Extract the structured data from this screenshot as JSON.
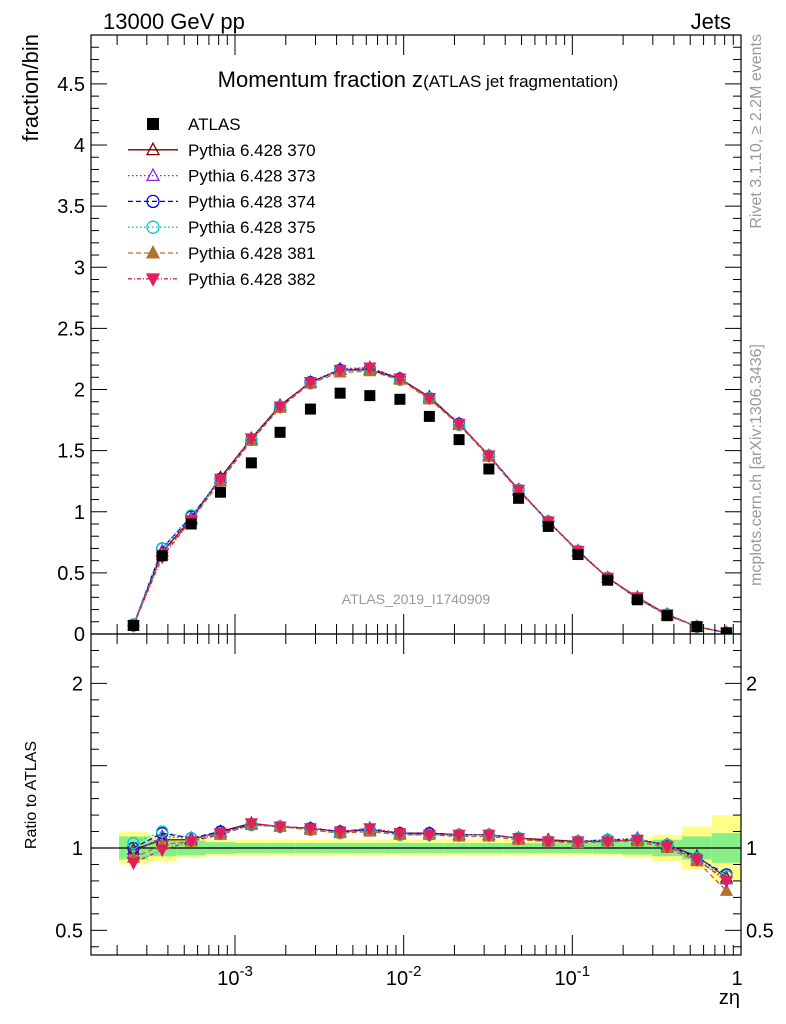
{
  "header": {
    "left": "13000 GeV pp",
    "right": "Jets"
  },
  "side_labels": {
    "rivet": "Rivet 3.1.10, ≥ 2.2M events",
    "mcplots": "mcplots.cern.ch [arXiv:1306.3436]"
  },
  "chart_data": {
    "type": "scatter",
    "title_main": "Momentum fraction z",
    "title_sub": "(ATLAS jet fragmentation)",
    "watermark": "ATLAS_2019_I1740909",
    "xlabel": "zη",
    "ylabel": "fraction/bin",
    "ratio_ylabel": "Ratio to ATLAS",
    "xscale": "log",
    "xlim": [
      0.00014,
      1.0
    ],
    "ylim": [
      0,
      4.9
    ],
    "ratio_ylim": [
      0.35,
      2.3
    ],
    "x_tick_labels": [
      "10^-3",
      "10^-2",
      "10^-1",
      "1"
    ],
    "y_ticks": [
      "0",
      "0.5",
      "1",
      "1.5",
      "2",
      "2.5",
      "3",
      "3.5",
      "4",
      "4.5"
    ],
    "ratio_y_ticks": [
      "0.5",
      "1",
      "2"
    ],
    "legend_position": "top-left",
    "x": [
      0.00025,
      0.00037,
      0.00055,
      0.00082,
      0.00125,
      0.00185,
      0.0028,
      0.0042,
      0.0063,
      0.0095,
      0.0142,
      0.0213,
      0.032,
      0.048,
      0.072,
      0.108,
      0.162,
      0.243,
      0.365,
      0.548,
      0.82
    ],
    "series": [
      {
        "name": "ATLAS",
        "color": "#000000",
        "marker": "square",
        "dash": "none",
        "values": [
          0.07,
          0.64,
          0.9,
          1.16,
          1.4,
          1.65,
          1.84,
          1.97,
          1.95,
          1.92,
          1.78,
          1.59,
          1.35,
          1.11,
          0.88,
          0.65,
          0.44,
          0.28,
          0.15,
          0.06,
          0.01
        ],
        "ratio_band_inner": [
          0.07,
          0.05,
          0.045,
          0.035,
          0.03,
          0.03,
          0.03,
          0.03,
          0.03,
          0.03,
          0.03,
          0.03,
          0.03,
          0.03,
          0.03,
          0.03,
          0.035,
          0.04,
          0.05,
          0.07,
          0.09
        ],
        "ratio_band_outer": [
          0.1,
          0.08,
          0.06,
          0.05,
          0.05,
          0.05,
          0.05,
          0.05,
          0.05,
          0.05,
          0.05,
          0.05,
          0.05,
          0.05,
          0.05,
          0.05,
          0.05,
          0.06,
          0.08,
          0.13,
          0.2
        ]
      },
      {
        "name": "Pythia 6.428 370",
        "color": "#800000",
        "marker": "triangle-open",
        "dash": "none",
        "values": [
          0.07,
          0.67,
          0.94,
          1.28,
          1.6,
          1.87,
          2.06,
          2.16,
          2.16,
          2.09,
          1.94,
          1.72,
          1.46,
          1.18,
          0.92,
          0.68,
          0.46,
          0.3,
          0.16,
          0.06,
          0.01
        ],
        "ratio": [
          0.99,
          1.05,
          1.05,
          1.1,
          1.15,
          1.13,
          1.12,
          1.1,
          1.11,
          1.09,
          1.09,
          1.08,
          1.08,
          1.06,
          1.05,
          1.04,
          1.04,
          1.05,
          1.02,
          0.95,
          0.82
        ]
      },
      {
        "name": "Pythia 6.428 373",
        "color": "#8a2be2",
        "marker": "triangle-open",
        "dash": "1.5,2.5",
        "values": [
          0.07,
          0.68,
          0.95,
          1.27,
          1.59,
          1.86,
          2.06,
          2.17,
          2.18,
          2.09,
          1.93,
          1.72,
          1.46,
          1.18,
          0.92,
          0.68,
          0.46,
          0.3,
          0.16,
          0.06,
          0.01
        ],
        "ratio": [
          0.97,
          1.07,
          1.06,
          1.09,
          1.14,
          1.13,
          1.12,
          1.1,
          1.12,
          1.09,
          1.09,
          1.08,
          1.08,
          1.06,
          1.04,
          1.04,
          1.05,
          1.06,
          1.01,
          0.93,
          0.81
        ]
      },
      {
        "name": "Pythia 6.428 374",
        "color": "#0000d0",
        "marker": "circle-open",
        "dash": "5,3",
        "values": [
          0.07,
          0.7,
          0.96,
          1.27,
          1.59,
          1.86,
          2.06,
          2.16,
          2.17,
          2.09,
          1.93,
          1.72,
          1.46,
          1.18,
          0.92,
          0.68,
          0.46,
          0.29,
          0.16,
          0.06,
          0.01
        ],
        "ratio": [
          1.0,
          1.09,
          1.06,
          1.1,
          1.14,
          1.13,
          1.12,
          1.1,
          1.11,
          1.09,
          1.09,
          1.08,
          1.08,
          1.06,
          1.04,
          1.04,
          1.05,
          1.05,
          1.02,
          0.94,
          0.84
        ]
      },
      {
        "name": "Pythia 6.428 375",
        "color": "#00c8c8",
        "marker": "circle-open",
        "dash": "1.5,2.5",
        "values": [
          0.08,
          0.7,
          0.97,
          1.26,
          1.59,
          1.86,
          2.05,
          2.15,
          2.16,
          2.08,
          1.93,
          1.71,
          1.46,
          1.18,
          0.92,
          0.68,
          0.46,
          0.29,
          0.16,
          0.06,
          0.01
        ],
        "ratio": [
          1.03,
          1.1,
          1.06,
          1.09,
          1.14,
          1.13,
          1.11,
          1.09,
          1.11,
          1.08,
          1.08,
          1.08,
          1.08,
          1.06,
          1.04,
          1.04,
          1.05,
          1.05,
          1.02,
          0.94,
          0.83
        ]
      },
      {
        "name": "Pythia 6.428 381",
        "color": "#b07030",
        "marker": "triangle-filled",
        "dash": "5,3",
        "values": [
          0.07,
          0.65,
          0.93,
          1.25,
          1.58,
          1.85,
          2.05,
          2.14,
          2.15,
          2.08,
          1.92,
          1.71,
          1.45,
          1.17,
          0.92,
          0.67,
          0.46,
          0.29,
          0.15,
          0.06,
          0.01
        ],
        "ratio": [
          0.94,
          1.02,
          1.04,
          1.08,
          1.14,
          1.13,
          1.11,
          1.09,
          1.1,
          1.08,
          1.08,
          1.07,
          1.07,
          1.05,
          1.04,
          1.03,
          1.04,
          1.04,
          1.0,
          0.92,
          0.74
        ]
      },
      {
        "name": "Pythia 6.428 382",
        "color": "#e0205a",
        "marker": "triangle-down-filled",
        "dash": "4,2,1,2",
        "values": [
          0.07,
          0.63,
          0.93,
          1.27,
          1.6,
          1.86,
          2.06,
          2.16,
          2.18,
          2.09,
          1.93,
          1.72,
          1.46,
          1.18,
          0.92,
          0.68,
          0.46,
          0.3,
          0.16,
          0.06,
          0.01
        ],
        "ratio": [
          0.91,
          0.99,
          1.04,
          1.09,
          1.15,
          1.13,
          1.12,
          1.1,
          1.12,
          1.09,
          1.08,
          1.08,
          1.08,
          1.06,
          1.04,
          1.04,
          1.04,
          1.05,
          1.01,
          0.93,
          0.8
        ]
      }
    ]
  }
}
